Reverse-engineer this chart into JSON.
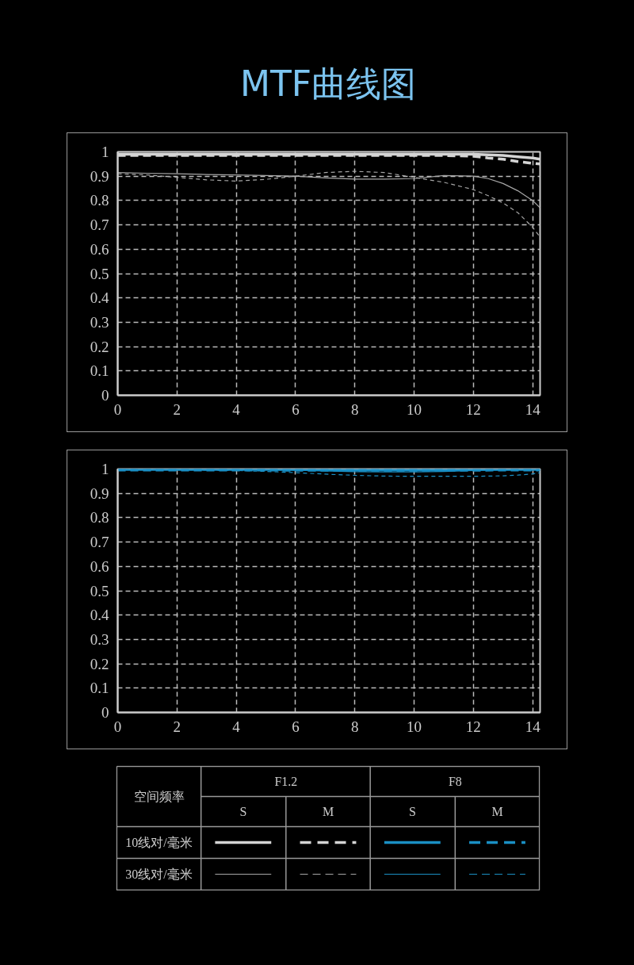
{
  "chart_data": [
    {
      "type": "line",
      "title": "MTF曲线图",
      "xlim": [
        0,
        14.25
      ],
      "xticks": [
        0,
        2,
        4,
        6,
        8,
        10,
        12,
        14
      ],
      "ylim": [
        0,
        1
      ],
      "yticks": [
        0,
        0.1,
        0.2,
        0.3,
        0.4,
        0.5,
        0.6,
        0.7,
        0.8,
        0.9,
        1
      ],
      "grid": true,
      "x": [
        0,
        1,
        2,
        3,
        4,
        5,
        6,
        7,
        8,
        9,
        10,
        11,
        12,
        12.5,
        13,
        13.5,
        14,
        14.25
      ],
      "series": [
        {
          "color": "#d4d4d4",
          "line_style": "solid",
          "values": [
            0.99,
            0.99,
            0.99,
            0.99,
            0.99,
            0.99,
            0.99,
            0.99,
            0.99,
            0.99,
            0.99,
            0.99,
            0.99,
            0.988,
            0.985,
            0.98,
            0.975,
            0.97
          ]
        },
        {
          "color": "#d4d4d4",
          "line_style": "dashed",
          "values": [
            0.985,
            0.985,
            0.985,
            0.985,
            0.985,
            0.985,
            0.985,
            0.985,
            0.985,
            0.985,
            0.985,
            0.985,
            0.982,
            0.975,
            0.97,
            0.96,
            0.953,
            0.95
          ]
        },
        {
          "color": "#a6a6a6",
          "line_style": "solid",
          "values": [
            0.915,
            0.912,
            0.91,
            0.907,
            0.905,
            0.903,
            0.9,
            0.893,
            0.888,
            0.888,
            0.89,
            0.903,
            0.9,
            0.89,
            0.87,
            0.84,
            0.8,
            0.77
          ]
        },
        {
          "color": "#a6a6a6",
          "line_style": "dashed",
          "values": [
            0.91,
            0.905,
            0.895,
            0.885,
            0.88,
            0.887,
            0.9,
            0.915,
            0.92,
            0.915,
            0.895,
            0.875,
            0.845,
            0.82,
            0.79,
            0.75,
            0.69,
            0.65
          ]
        }
      ]
    },
    {
      "type": "line",
      "xlim": [
        0,
        14.25
      ],
      "xticks": [
        0,
        2,
        4,
        6,
        8,
        10,
        12,
        14
      ],
      "ylim": [
        0,
        1
      ],
      "yticks": [
        0,
        0.1,
        0.2,
        0.3,
        0.4,
        0.5,
        0.6,
        0.7,
        0.8,
        0.9,
        1
      ],
      "grid": true,
      "x": [
        0,
        2,
        4,
        5,
        6,
        7,
        8,
        9,
        10,
        11,
        12,
        13,
        13.5,
        14,
        14.25
      ],
      "series": [
        {
          "color": "#1a8fc4",
          "line_style": "solid",
          "values": [
            0.998,
            0.998,
            0.998,
            0.998,
            0.998,
            0.997,
            0.997,
            0.997,
            0.997,
            0.997,
            0.998,
            0.998,
            0.998,
            0.998,
            0.998
          ]
        },
        {
          "color": "#1a8fc4",
          "line_style": "dashed",
          "values": [
            0.996,
            0.996,
            0.996,
            0.996,
            0.995,
            0.995,
            0.995,
            0.995,
            0.995,
            0.995,
            0.995,
            0.996,
            0.996,
            0.996,
            0.996
          ]
        },
        {
          "color": "#1a8fc4",
          "line_style": "solid",
          "values": [
            0.999,
            0.999,
            0.998,
            0.997,
            0.995,
            0.992,
            0.989,
            0.988,
            0.988,
            0.99,
            0.994,
            0.996,
            0.997,
            0.997,
            0.997
          ]
        },
        {
          "color": "#1a8fc4",
          "line_style": "dashed",
          "values": [
            0.999,
            0.997,
            0.994,
            0.99,
            0.985,
            0.979,
            0.974,
            0.971,
            0.97,
            0.97,
            0.97,
            0.972,
            0.975,
            0.98,
            0.985
          ]
        }
      ]
    },
    {
      "type": "other",
      "annotations": [
        "空间频率",
        "F1.2",
        "F8",
        "S",
        "M",
        "S",
        "M",
        "10线对/毫米",
        "30线对/毫米"
      ]
    }
  ]
}
